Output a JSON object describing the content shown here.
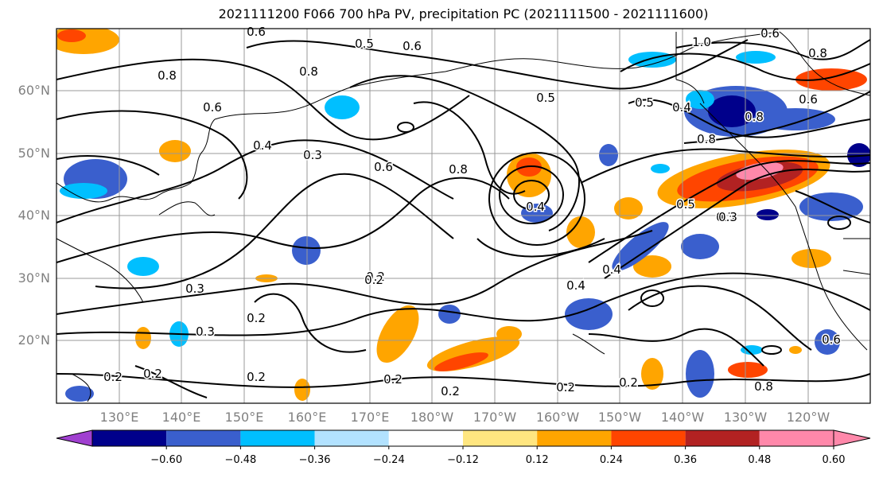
{
  "title": "2021111200 F066 700 hPa PV, precipitation PC (2021111500 - 2021111600)",
  "lat_labels": [
    "60°N",
    "50°N",
    "40°N",
    "30°N",
    "20°N"
  ],
  "lon_labels": [
    "130°E",
    "140°E",
    "150°E",
    "160°E",
    "170°E",
    "180°W",
    "170°W",
    "160°W",
    "150°W",
    "140°W",
    "130°W",
    "120°W"
  ],
  "contour_labels": [
    "0.6",
    "0.5",
    "0.6",
    "0.8",
    "0.8",
    "1.0",
    "0.6",
    "0.8",
    "0.5",
    "0.6",
    "0.8",
    "0.5",
    "0.4",
    "0.6",
    "0.8",
    "0.4",
    "0.3",
    "0.6",
    "0.8",
    "0.4",
    "0.3",
    "0.5",
    "0.3",
    "0.2",
    "0.3",
    "0.2",
    "0.3",
    "0.2",
    "0.4",
    "0.2",
    "0.2",
    "0.2",
    "0.2",
    "0.2",
    "0.4",
    "0.2",
    "0.2",
    "0.8",
    "0.6"
  ],
  "colorbar": {
    "ticks": [
      "−0.60",
      "−0.48",
      "−0.36",
      "−0.24",
      "−0.12",
      "0.12",
      "0.24",
      "0.36",
      "0.48",
      "0.60"
    ],
    "colors": [
      "#a040d0",
      "#00008b",
      "#3a5fcd",
      "#00bfff",
      "#b2e2ff",
      "#ffffff",
      "#ffe680",
      "#ffa500",
      "#ff4500",
      "#b22222",
      "#ff88aa",
      "#ff88aa"
    ]
  }
}
